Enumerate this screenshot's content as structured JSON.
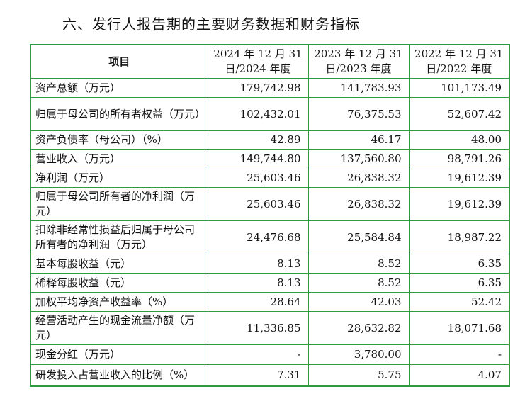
{
  "header": {
    "title": "六、发行人报告期的主要财务数据和财务指标"
  },
  "table": {
    "headers": [
      "项目",
      "2024 年 12 月 31 日/2024 年度",
      "2023 年 12 月 31 日/2023 年度",
      "2022 年 12 月 31 日/2022 年度"
    ],
    "rows": [
      [
        "资产总额（万元）",
        "179,742.98",
        "141,783.93",
        "101,173.49"
      ],
      [
        "归属于母公司的所有者权益（万元）",
        "102,432.01",
        "76,375.53",
        "52,607.42"
      ],
      [
        "资产负债率（母公司）（%）",
        "42.89",
        "46.17",
        "48.00"
      ],
      [
        "营业收入（万元）",
        "149,744.80",
        "137,560.80",
        "98,791.26"
      ],
      [
        "净利润（万元）",
        "25,603.46",
        "26,838.32",
        "19,612.39"
      ],
      [
        "归属于母公司所有者的净利润（万元）",
        "25,603.46",
        "26,838.32",
        "19,612.39"
      ],
      [
        "扣除非经常性损益后归属于母公司所有者的净利润（万元）",
        "24,476.68",
        "25,584.84",
        "18,987.22"
      ],
      [
        "基本每股收益（元）",
        "8.13",
        "8.52",
        "6.35"
      ],
      [
        "稀释每股收益（元）",
        "8.13",
        "8.52",
        "6.35"
      ],
      [
        "加权平均净资产收益率（%）",
        "28.64",
        "42.03",
        "52.42"
      ],
      [
        "经营活动产生的现金流量净额（万元）",
        "11,336.85",
        "28,632.82",
        "18,071.68"
      ],
      [
        "现金分红（万元）",
        "-",
        "3,780.00",
        "-"
      ],
      [
        "研发投入占营业收入的比例（%）",
        "7.31",
        "5.75",
        "4.07"
      ]
    ]
  }
}
